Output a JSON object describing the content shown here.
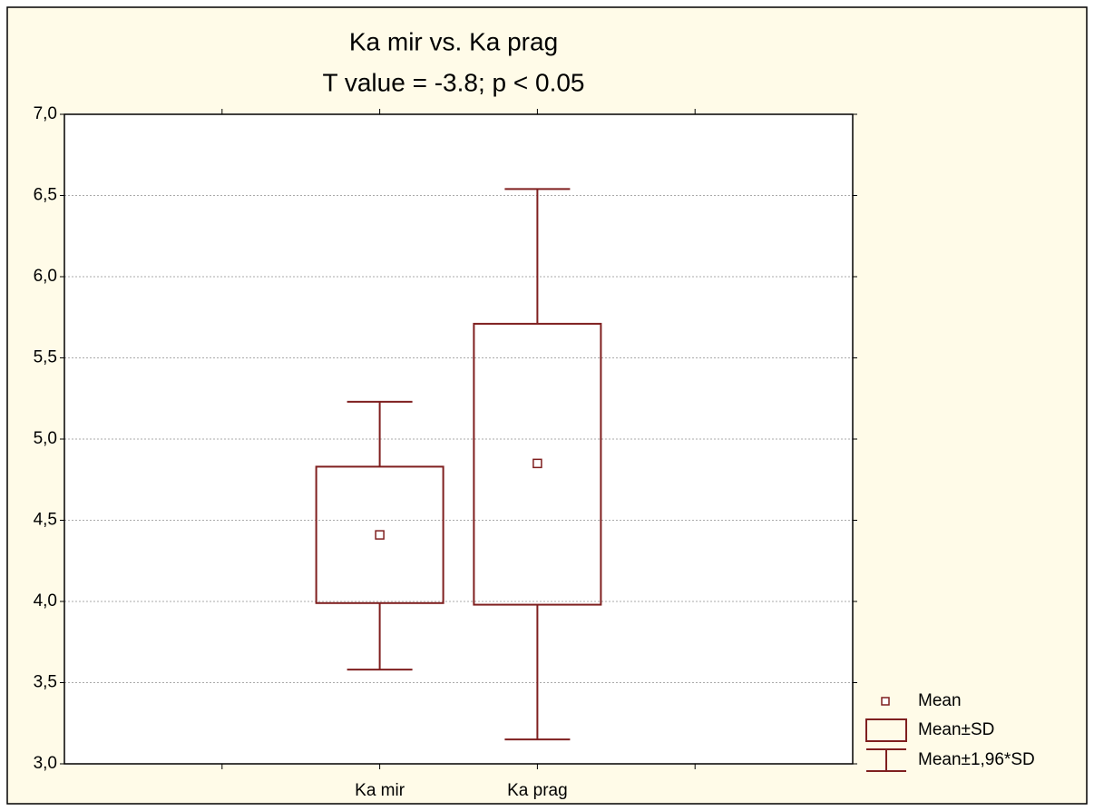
{
  "chart_data": {
    "type": "box",
    "title": "Ka mir vs. Ka prag",
    "subtitle": "T value = -3.8; p < 0.05",
    "categories": [
      "Ka mir",
      "Ka prag"
    ],
    "color": "#7f1f1f",
    "grid": true,
    "legend": "bottom-right",
    "ylim": [
      3,
      7
    ],
    "yticks": [
      {
        "value": 3,
        "label": "3,0"
      },
      {
        "value": 3.5,
        "label": "3,5"
      },
      {
        "value": 4,
        "label": "4,0"
      },
      {
        "value": 4.5,
        "label": "4,5"
      },
      {
        "value": 5,
        "label": "5,0"
      },
      {
        "value": 5.5,
        "label": "5,5"
      },
      {
        "value": 6,
        "label": "6,0"
      },
      {
        "value": 6.5,
        "label": "6,5"
      },
      {
        "value": 7,
        "label": "7,0"
      }
    ],
    "series": [
      {
        "name": "Mean",
        "values": [
          4.41,
          4.85
        ]
      },
      {
        "name": "Mean±SD",
        "low": [
          3.99,
          3.98
        ],
        "high": [
          4.83,
          5.71
        ]
      },
      {
        "name": "Mean±1,96*SD",
        "low": [
          3.58,
          3.15
        ],
        "high": [
          5.23,
          6.54
        ]
      }
    ]
  }
}
